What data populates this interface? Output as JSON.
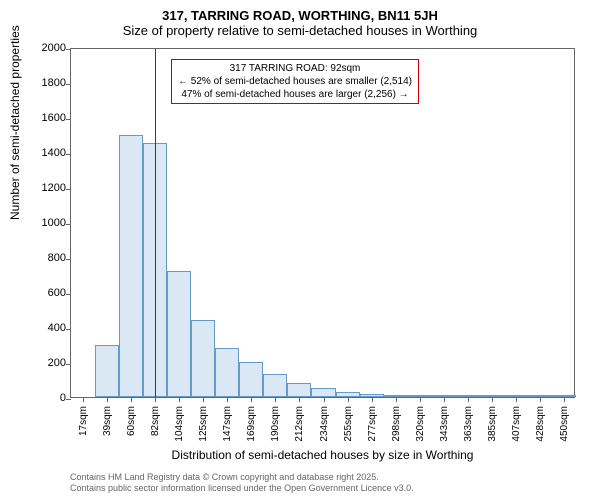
{
  "title": "317, TARRING ROAD, WORTHING, BN11 5JH",
  "subtitle": "Size of property relative to semi-detached houses in Worthing",
  "y_axis_label": "Number of semi-detached properties",
  "x_axis_label": "Distribution of semi-detached houses by size in Worthing",
  "chart": {
    "type": "histogram",
    "ylim": [
      0,
      2000
    ],
    "ytick_step": 200,
    "bar_fill": "#dae8f5",
    "bar_border": "#6699cc",
    "plot_border": "#666666",
    "marker_color": "#cc0000",
    "background": "#ffffff",
    "x_categories": [
      "17sqm",
      "39sqm",
      "60sqm",
      "82sqm",
      "104sqm",
      "125sqm",
      "147sqm",
      "169sqm",
      "190sqm",
      "212sqm",
      "234sqm",
      "255sqm",
      "277sqm",
      "298sqm",
      "320sqm",
      "343sqm",
      "363sqm",
      "385sqm",
      "407sqm",
      "428sqm",
      "450sqm"
    ],
    "bar_values": [
      0,
      300,
      1500,
      1450,
      720,
      440,
      280,
      200,
      130,
      80,
      50,
      30,
      20,
      10,
      5,
      3,
      2,
      2,
      1,
      1,
      1
    ],
    "marker_index": 3.5,
    "annotation": {
      "line1": "317 TARRING ROAD: 92sqm",
      "line2": "← 52% of semi-detached houses are smaller (2,514)",
      "line3": "47% of semi-detached houses are larger (2,256) →"
    }
  },
  "footer1": "Contains HM Land Registry data © Crown copyright and database right 2025.",
  "footer2": "Contains public sector information licensed under the Open Government Licence v3.0."
}
